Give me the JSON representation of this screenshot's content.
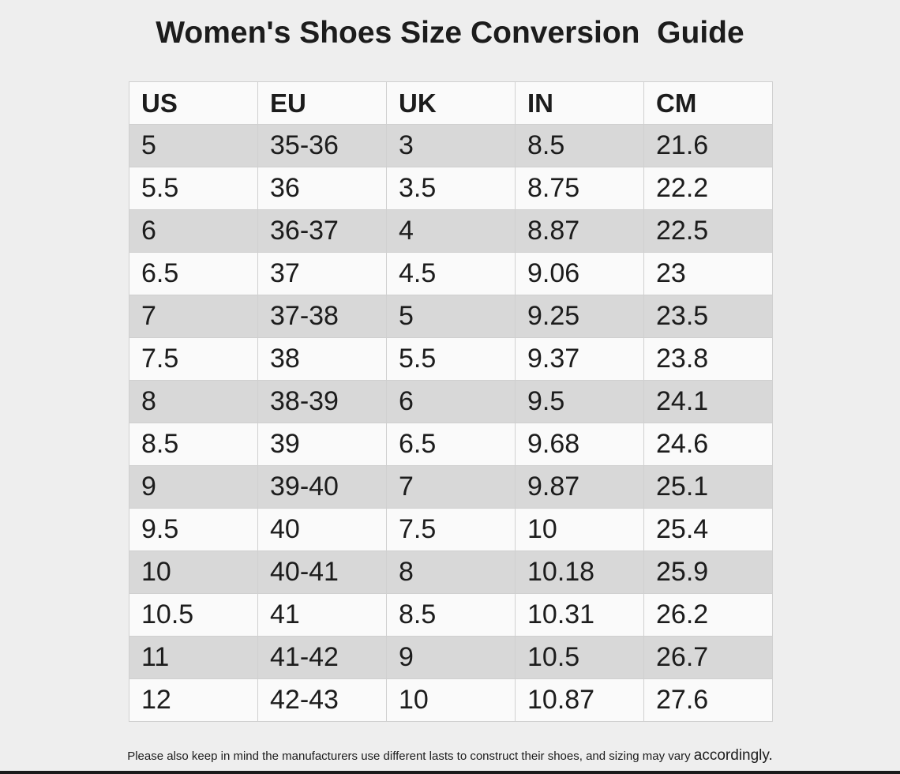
{
  "header": {
    "title": "Women's Shoes Size Conversion  Guide"
  },
  "table": {
    "columns": [
      "US",
      "EU",
      "UK",
      "IN",
      "CM"
    ],
    "rows": [
      [
        "5",
        "35-36",
        "3",
        "8.5",
        "21.6"
      ],
      [
        "5.5",
        "36",
        "3.5",
        "8.75",
        "22.2"
      ],
      [
        "6",
        "36-37",
        "4",
        "8.87",
        "22.5"
      ],
      [
        "6.5",
        "37",
        "4.5",
        "9.06",
        "23"
      ],
      [
        "7",
        "37-38",
        "5",
        "9.25",
        "23.5"
      ],
      [
        "7.5",
        "38",
        "5.5",
        "9.37",
        "23.8"
      ],
      [
        "8",
        "38-39",
        "6",
        "9.5",
        "24.1"
      ],
      [
        "8.5",
        "39",
        "6.5",
        "9.68",
        "24.6"
      ],
      [
        "9",
        "39-40",
        "7",
        "9.87",
        "25.1"
      ],
      [
        "9.5",
        "40",
        "7.5",
        "10",
        "25.4"
      ],
      [
        "10",
        "40-41",
        "8",
        "10.18",
        "25.9"
      ],
      [
        "10.5",
        "41",
        "8.5",
        "10.31",
        "26.2"
      ],
      [
        "11",
        "41-42",
        "9",
        "10.5",
        "26.7"
      ],
      [
        "12",
        "42-43",
        "10",
        "10.87",
        "27.6"
      ]
    ]
  },
  "footer": {
    "text": "Please also keep in mind the manufacturers use different lasts to construct their shoes, and sizing may vary",
    "emphasis": "accordingly."
  }
}
